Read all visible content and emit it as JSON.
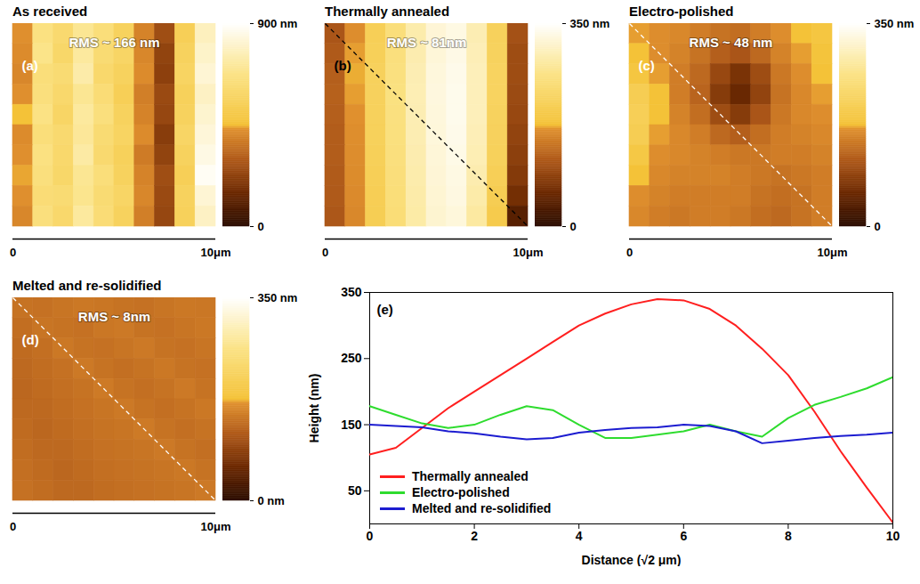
{
  "chart_data": [
    {
      "type": "heatmap",
      "title": "As received",
      "annotation": "RMS ~ 166 nm",
      "panel_label": "(a)",
      "xlim": [
        0,
        10
      ],
      "xticks": [
        0,
        {
          "value": 10,
          "label": "10μm"
        }
      ],
      "clim": [
        0,
        900
      ],
      "cticks": [
        0,
        {
          "value": 900,
          "label": "900 nm"
        }
      ],
      "cells": [
        [
          430,
          660,
          610,
          700,
          640,
          560,
          400,
          260,
          540,
          780
        ],
        [
          420,
          680,
          590,
          720,
          620,
          580,
          410,
          230,
          560,
          800
        ],
        [
          410,
          640,
          620,
          740,
          600,
          560,
          420,
          220,
          570,
          820
        ],
        [
          430,
          650,
          600,
          700,
          630,
          540,
          390,
          250,
          550,
          790
        ],
        [
          450,
          670,
          580,
          720,
          650,
          560,
          400,
          240,
          560,
          810
        ],
        [
          420,
          640,
          610,
          710,
          620,
          570,
          420,
          210,
          580,
          830
        ],
        [
          430,
          660,
          600,
          730,
          610,
          550,
          380,
          230,
          560,
          850
        ],
        [
          440,
          650,
          590,
          700,
          640,
          560,
          400,
          260,
          540,
          880
        ],
        [
          430,
          630,
          620,
          690,
          620,
          580,
          410,
          250,
          560,
          820
        ],
        [
          410,
          650,
          600,
          720,
          630,
          560,
          390,
          240,
          550,
          790
        ]
      ]
    },
    {
      "type": "heatmap",
      "title": "Thermally annealed",
      "annotation": "RMS ~ 81nm",
      "panel_label": "(b)",
      "line_style": "dashed",
      "color": "#000000",
      "xlim": [
        0,
        10
      ],
      "xticks": [
        0,
        {
          "value": 10,
          "label": "10μm"
        }
      ],
      "clim": [
        0,
        350
      ],
      "cticks": [
        0,
        {
          "value": 350,
          "label": "350 nm"
        }
      ],
      "cells": [
        [
          110,
          165,
          210,
          250,
          290,
          320,
          330,
          295,
          215,
          105
        ],
        [
          115,
          170,
          212,
          252,
          292,
          322,
          332,
          298,
          218,
          100
        ],
        [
          120,
          172,
          215,
          255,
          295,
          325,
          335,
          300,
          220,
          100
        ],
        [
          122,
          170,
          216,
          256,
          296,
          326,
          336,
          300,
          220,
          98
        ],
        [
          120,
          168,
          215,
          255,
          295,
          325,
          336,
          300,
          218,
          95
        ],
        [
          118,
          166,
          214,
          254,
          294,
          324,
          335,
          298,
          216,
          90
        ],
        [
          118,
          165,
          212,
          252,
          292,
          322,
          333,
          296,
          214,
          85
        ],
        [
          116,
          164,
          210,
          250,
          290,
          320,
          330,
          292,
          210,
          78
        ],
        [
          115,
          162,
          208,
          248,
          288,
          318,
          328,
          288,
          205,
          65
        ],
        [
          112,
          160,
          206,
          246,
          286,
          316,
          324,
          282,
          198,
          40
        ]
      ]
    },
    {
      "type": "heatmap",
      "title": "Electro-polished",
      "annotation": "RMS ~ 48 nm",
      "panel_label": "(c)",
      "line_style": "dashed",
      "color": "#ffffff",
      "xlim": [
        0,
        10
      ],
      "xticks": [
        0,
        {
          "value": 10,
          "label": "10μm"
        }
      ],
      "clim": [
        0,
        350
      ],
      "cticks": [
        0,
        {
          "value": 350,
          "label": "350 nm"
        }
      ],
      "cells": [
        [
          170,
          165,
          160,
          150,
          140,
          135,
          150,
          165,
          175,
          185
        ],
        [
          175,
          165,
          155,
          140,
          120,
          110,
          130,
          155,
          170,
          180
        ],
        [
          185,
          170,
          150,
          130,
          95,
          70,
          100,
          145,
          165,
          175
        ],
        [
          205,
          175,
          150,
          125,
          80,
          55,
          90,
          140,
          160,
          170
        ],
        [
          210,
          175,
          155,
          135,
          100,
          80,
          110,
          145,
          160,
          165
        ],
        [
          205,
          170,
          160,
          150,
          130,
          120,
          135,
          150,
          155,
          160
        ],
        [
          190,
          165,
          160,
          155,
          150,
          145,
          145,
          150,
          150,
          155
        ],
        [
          175,
          160,
          155,
          155,
          155,
          150,
          145,
          140,
          145,
          150
        ],
        [
          165,
          155,
          150,
          150,
          150,
          150,
          140,
          135,
          140,
          150
        ],
        [
          160,
          150,
          145,
          150,
          150,
          145,
          135,
          130,
          140,
          150
        ]
      ]
    },
    {
      "type": "heatmap",
      "title": "Melted and re-solidified",
      "annotation": "RMS ~ 8nm",
      "panel_label": "(d)",
      "line_style": "dashed",
      "color": "#ffffff",
      "xlim": [
        0,
        10
      ],
      "xticks": [
        0,
        {
          "value": 10,
          "label": "10μm"
        }
      ],
      "clim": [
        0,
        350
      ],
      "cticks": [
        {
          "value": 0,
          "label": "0 nm"
        },
        {
          "value": 350,
          "label": "350 nm"
        }
      ],
      "cells": [
        [
          140,
          138,
          142,
          145,
          143,
          140,
          138,
          142,
          145,
          144
        ],
        [
          135,
          142,
          140,
          138,
          144,
          146,
          140,
          138,
          142,
          145
        ],
        [
          132,
          136,
          145,
          140,
          138,
          142,
          146,
          140,
          138,
          142
        ],
        [
          130,
          134,
          138,
          146,
          140,
          136,
          140,
          145,
          140,
          138
        ],
        [
          128,
          132,
          136,
          140,
          147,
          140,
          136,
          140,
          146,
          140
        ],
        [
          130,
          130,
          134,
          138,
          142,
          146,
          140,
          136,
          140,
          145
        ],
        [
          132,
          128,
          132,
          136,
          140,
          142,
          147,
          140,
          136,
          140
        ],
        [
          134,
          130,
          130,
          134,
          138,
          140,
          142,
          146,
          140,
          136
        ],
        [
          136,
          132,
          128,
          132,
          136,
          138,
          140,
          142,
          145,
          140
        ],
        [
          138,
          134,
          130,
          130,
          134,
          136,
          138,
          140,
          142,
          146
        ]
      ]
    },
    {
      "type": "line",
      "panel_label": "(e)",
      "x_label": "Distance (√2 μm)",
      "y_label": "Height (nm)",
      "xlim": [
        0,
        10
      ],
      "xticks": [
        0,
        2,
        4,
        6,
        8,
        10
      ],
      "ylim": [
        0,
        350
      ],
      "yticks": [
        50,
        150,
        250,
        350
      ],
      "legend": "lower left",
      "x": [
        0,
        0.5,
        1,
        1.5,
        2,
        2.5,
        3,
        3.5,
        4,
        4.5,
        5,
        5.5,
        6,
        6.5,
        7,
        7.5,
        8,
        8.5,
        9,
        9.5,
        10
      ],
      "series": [
        {
          "name": "Thermally annealed",
          "color": "#ff1f1f",
          "values": [
            105,
            115,
            145,
            175,
            200,
            225,
            250,
            275,
            300,
            318,
            332,
            340,
            338,
            325,
            300,
            265,
            225,
            170,
            110,
            55,
            2
          ]
        },
        {
          "name": "Electro-polished",
          "color": "#2edc2e",
          "values": [
            178,
            165,
            152,
            145,
            150,
            165,
            178,
            172,
            150,
            130,
            130,
            135,
            140,
            150,
            140,
            132,
            160,
            180,
            192,
            205,
            222
          ]
        },
        {
          "name": "Melted and re-solidified",
          "color": "#1c1cd0",
          "values": [
            150,
            148,
            146,
            140,
            137,
            132,
            128,
            130,
            138,
            142,
            145,
            146,
            150,
            148,
            140,
            122,
            126,
            130,
            133,
            135,
            138
          ]
        }
      ]
    }
  ]
}
